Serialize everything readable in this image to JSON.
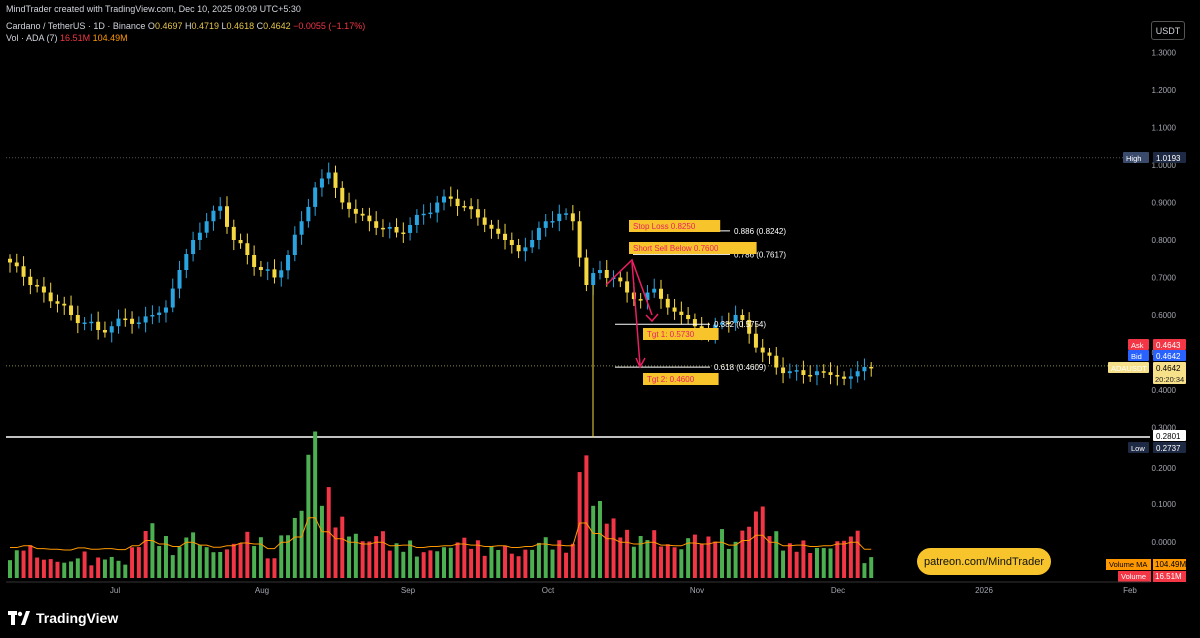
{
  "header": {
    "line1": "MindTrader created with TradingView.com, Dec 10, 2025 09:09 UTC+5:30",
    "symbol": "Cardano / TetherUS · 1D · Binance",
    "o_label": "O",
    "o_val": "0.4697",
    "h_label": "H",
    "h_val": "0.4719",
    "l_label": "L",
    "l_val": "0.4618",
    "c_label": "C",
    "c_val": "0.4642",
    "change": "−0.0055 (−1.17%)",
    "vol_label": "Vol · ADA (7)",
    "vol_value": "16.51M",
    "vol_ma": "104.49M"
  },
  "currency_button": "USDT",
  "footer": {
    "brand": "TradingView",
    "watermark": "patreon.com/MindTrader"
  },
  "colors": {
    "up": "#26a69a",
    "bull_candle": "#2aa4e0",
    "bear_candle": "#f5d742",
    "vol_up": "#4caf50",
    "vol_down": "#f23645",
    "ma": "#ff9800",
    "annotation": "#f7c52b",
    "arrow": "#e91e63"
  },
  "chart_data": [
    {
      "type": "candlestick",
      "symbol": "ADAUSDT",
      "timeframe": "1D",
      "x_ticks": [
        "Jul",
        "Aug",
        "Sep",
        "Oct",
        "Nov",
        "Dec",
        "2026",
        "Feb"
      ],
      "y_ticks": [
        "1.3000",
        "1.2000",
        "1.1000",
        "1.0000",
        "0.9000",
        "0.8000",
        "0.7000",
        "0.6000",
        "0.5000",
        "0.4000",
        "0.3000"
      ],
      "ylim": [
        0.27,
        1.35
      ],
      "close_series_sampled": [
        0.73,
        0.68,
        0.66,
        0.63,
        0.6,
        0.58,
        0.56,
        0.57,
        0.59,
        0.58,
        0.6,
        0.62,
        0.72,
        0.8,
        0.85,
        0.89,
        0.8,
        0.76,
        0.72,
        0.7,
        0.76,
        0.85,
        0.94,
        0.98,
        0.9,
        0.87,
        0.85,
        0.83,
        0.82,
        0.84,
        0.87,
        0.9,
        0.91,
        0.89,
        0.86,
        0.83,
        0.8,
        0.77,
        0.8,
        0.85,
        0.87,
        0.85,
        0.68,
        0.72,
        0.7,
        0.66,
        0.64,
        0.67,
        0.62,
        0.6,
        0.57,
        0.55,
        0.58,
        0.6,
        0.55,
        0.5,
        0.46,
        0.45,
        0.44,
        0.45,
        0.44,
        0.43,
        0.45,
        0.46
      ],
      "price_labels": {
        "high": {
          "label": "High",
          "value": "1.0193"
        },
        "ask": {
          "label": "Ask",
          "value": "0.4643"
        },
        "bid": {
          "label": "Bid",
          "value": "0.4642"
        },
        "last": {
          "label": "ADAUSDT",
          "value": "0.4642",
          "countdown": "20:20:34"
        },
        "line": {
          "value": "0.2801"
        },
        "low": {
          "label": "Low",
          "value": "0.2737"
        }
      },
      "fib_levels": [
        {
          "text": "0.886 (0.8242)",
          "price": 0.8242
        },
        {
          "text": "0.786 (0.7617)",
          "price": 0.7617
        },
        {
          "text": "0.382 (0.5754)",
          "price": 0.5754
        },
        {
          "text": "0.618 (0.4609)",
          "price": 0.4609
        }
      ],
      "annotations": [
        {
          "text": "Stop Loss 0.8250",
          "price": 0.825
        },
        {
          "text": "Short Sell Below 0.7600",
          "price": 0.76
        },
        {
          "text": "Tgt 1: 0.5730",
          "price": 0.573
        },
        {
          "text": "Tgt 2: 0.4600",
          "price": 0.46
        }
      ]
    },
    {
      "type": "bar",
      "name": "Volume",
      "y_ticks": [
        "0.2000",
        "0.1000",
        "0.0000"
      ],
      "volume_labels": [
        {
          "label": "Volume MA",
          "value": "104.49M"
        },
        {
          "label": "Volume",
          "value": "16.51M"
        }
      ],
      "relative_heights_sampled": [
        0.15,
        0.2,
        0.12,
        0.1,
        0.08,
        0.14,
        0.1,
        0.12,
        0.09,
        0.2,
        0.35,
        0.25,
        0.18,
        0.3,
        0.22,
        0.16,
        0.2,
        0.28,
        0.25,
        0.12,
        0.3,
        0.45,
        1.0,
        0.6,
        0.4,
        0.3,
        0.25,
        0.3,
        0.2,
        0.22,
        0.15,
        0.18,
        0.2,
        0.25,
        0.22,
        0.18,
        0.2,
        0.15,
        0.18,
        0.25,
        0.22,
        0.2,
        0.85,
        0.55,
        0.4,
        0.3,
        0.25,
        0.3,
        0.22,
        0.2,
        0.28,
        0.25,
        0.3,
        0.22,
        0.35,
        0.5,
        0.3,
        0.2,
        0.22,
        0.18,
        0.2,
        0.25,
        0.3,
        0.1
      ]
    }
  ]
}
